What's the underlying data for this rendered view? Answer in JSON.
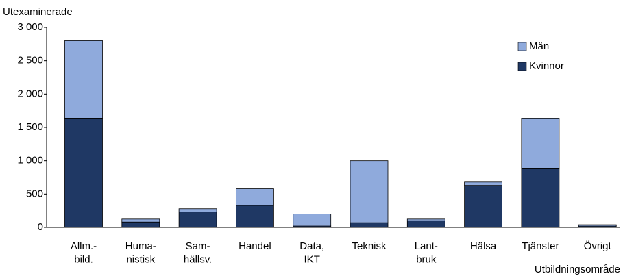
{
  "chart_data": {
    "type": "stacked_bar",
    "y_label": "Utexaminerade",
    "x_label": "Utbildningsområde",
    "categories": [
      "Allm.-\nbild.",
      "Huma-\nnistisk",
      "Sam-\nhällsv.",
      "Handel",
      "Data,\nIKT",
      "Teknisk",
      "Lant-\nbruk",
      "Hälsa",
      "Tjänster",
      "Övrigt"
    ],
    "series": [
      {
        "name": "Kvinnor",
        "color": "#1f3864",
        "values": [
          1630,
          80,
          230,
          330,
          20,
          70,
          100,
          630,
          880,
          20
        ]
      },
      {
        "name": "Män",
        "color": "#8faadc",
        "values": [
          1170,
          45,
          50,
          250,
          180,
          930,
          25,
          50,
          750,
          20
        ]
      }
    ],
    "ylim": [
      0,
      3000
    ],
    "yticks": [
      0,
      500,
      {
        "value": 1000,
        "label": "1 000"
      },
      {
        "value": 1500,
        "label": "1 500"
      },
      {
        "value": 2000,
        "label": "2 000"
      },
      {
        "value": 2500,
        "label": "2 500"
      },
      {
        "value": 3000,
        "label": "3 000"
      }
    ],
    "grid": false,
    "legend": "upper right"
  }
}
